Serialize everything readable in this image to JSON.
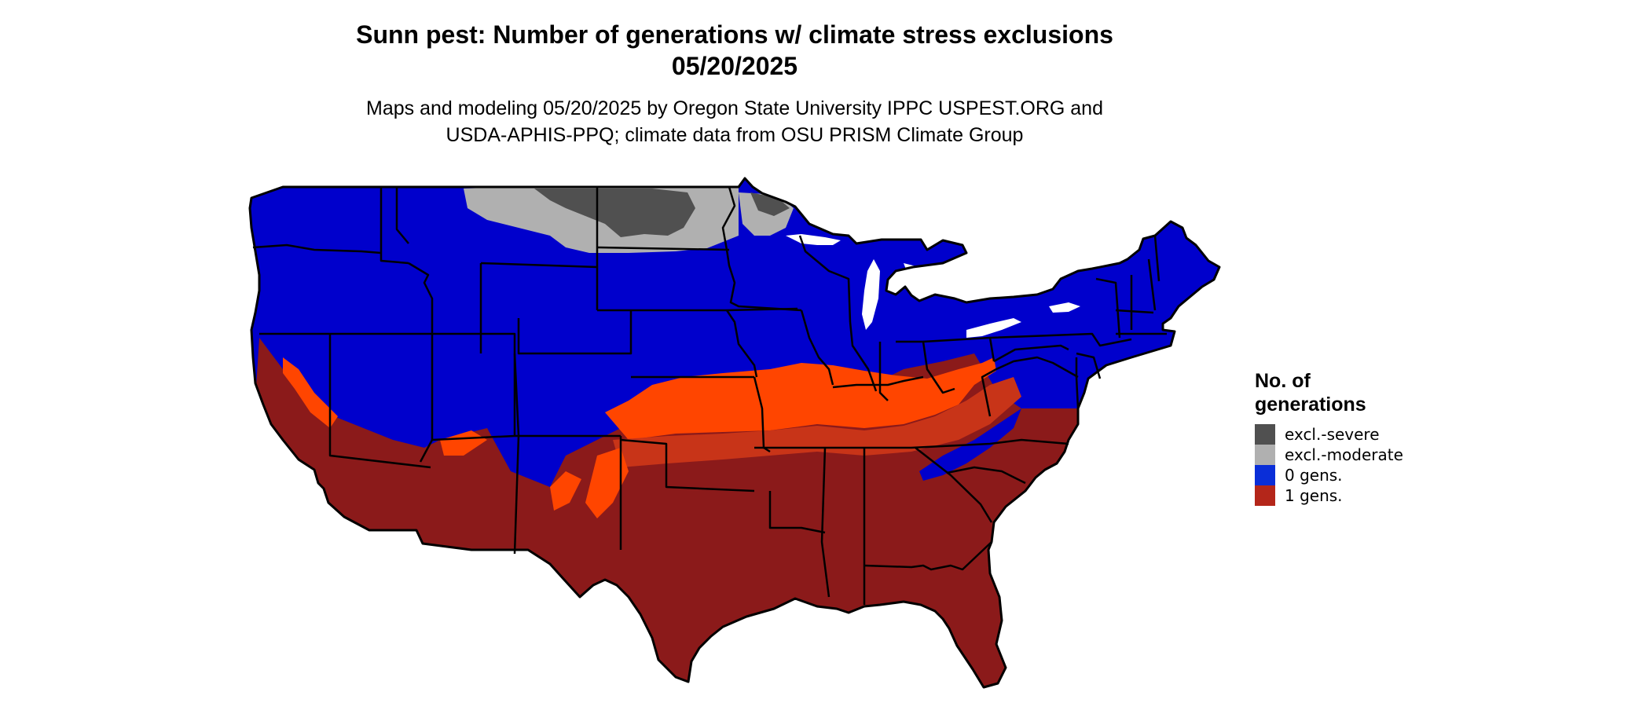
{
  "header": {
    "title_line1": "Sunn pest: Number of generations w/ climate stress exclusions",
    "title_line2": "05/20/2025",
    "subtitle_line1": "Maps and modeling 05/20/2025 by Oregon State University IPPC USPEST.ORG and",
    "subtitle_line2": "USDA-APHIS-PPQ; climate data from OSU PRISM Climate Group"
  },
  "legend": {
    "title": "No. of generations",
    "items": [
      {
        "label": "excl.-severe",
        "color": "#505050"
      },
      {
        "label": "excl.-moderate",
        "color": "#b0b0b0"
      },
      {
        "label": "0 gens.",
        "color": "#0a2ed8"
      },
      {
        "label": "1 gens.",
        "color": "#b4261a"
      }
    ]
  },
  "map": {
    "region": "Contiguous United States",
    "colors": {
      "zero_generations": "#0000cc",
      "one_generation": "#8b1a1a",
      "transition_band": "#ff4500",
      "transition_band_dark": "#c83418",
      "excl_severe": "#505050",
      "excl_moderate": "#b0b0b0",
      "state_border": "#000000"
    }
  }
}
